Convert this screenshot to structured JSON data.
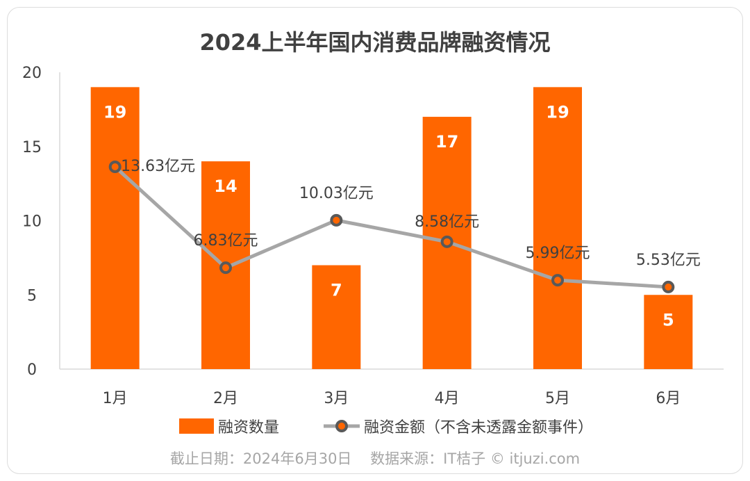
{
  "chart_data": {
    "type": "bar",
    "title": "2024上半年国内消费品牌融资情况",
    "categories": [
      "1月",
      "2月",
      "3月",
      "4月",
      "5月",
      "6月"
    ],
    "ylim": [
      0,
      20
    ],
    "yticks": [
      "0",
      "5",
      "10",
      "15",
      "20"
    ],
    "grid": false,
    "series": [
      {
        "name": "融资数量",
        "type": "bar",
        "color": "#ff6600",
        "values": [
          19,
          14,
          7,
          17,
          19,
          5
        ],
        "labels": [
          "19",
          "14",
          "7",
          "17",
          "19",
          "5"
        ]
      },
      {
        "name": "融资金额（不含未透露金额事件）",
        "type": "line",
        "color": "#a6a6a6",
        "marker_color": "#595959",
        "values": [
          13.63,
          6.83,
          10.03,
          8.58,
          5.99,
          5.53
        ],
        "labels": [
          "13.63亿元",
          "6.83亿元",
          "10.03亿元",
          "8.58亿元",
          "5.99亿元",
          "5.53亿元"
        ]
      }
    ],
    "legend": "bottom"
  },
  "footer": {
    "date": "截止日期：2024年6月30日",
    "source": "数据来源：IT桔子 © itjuzi.com"
  }
}
